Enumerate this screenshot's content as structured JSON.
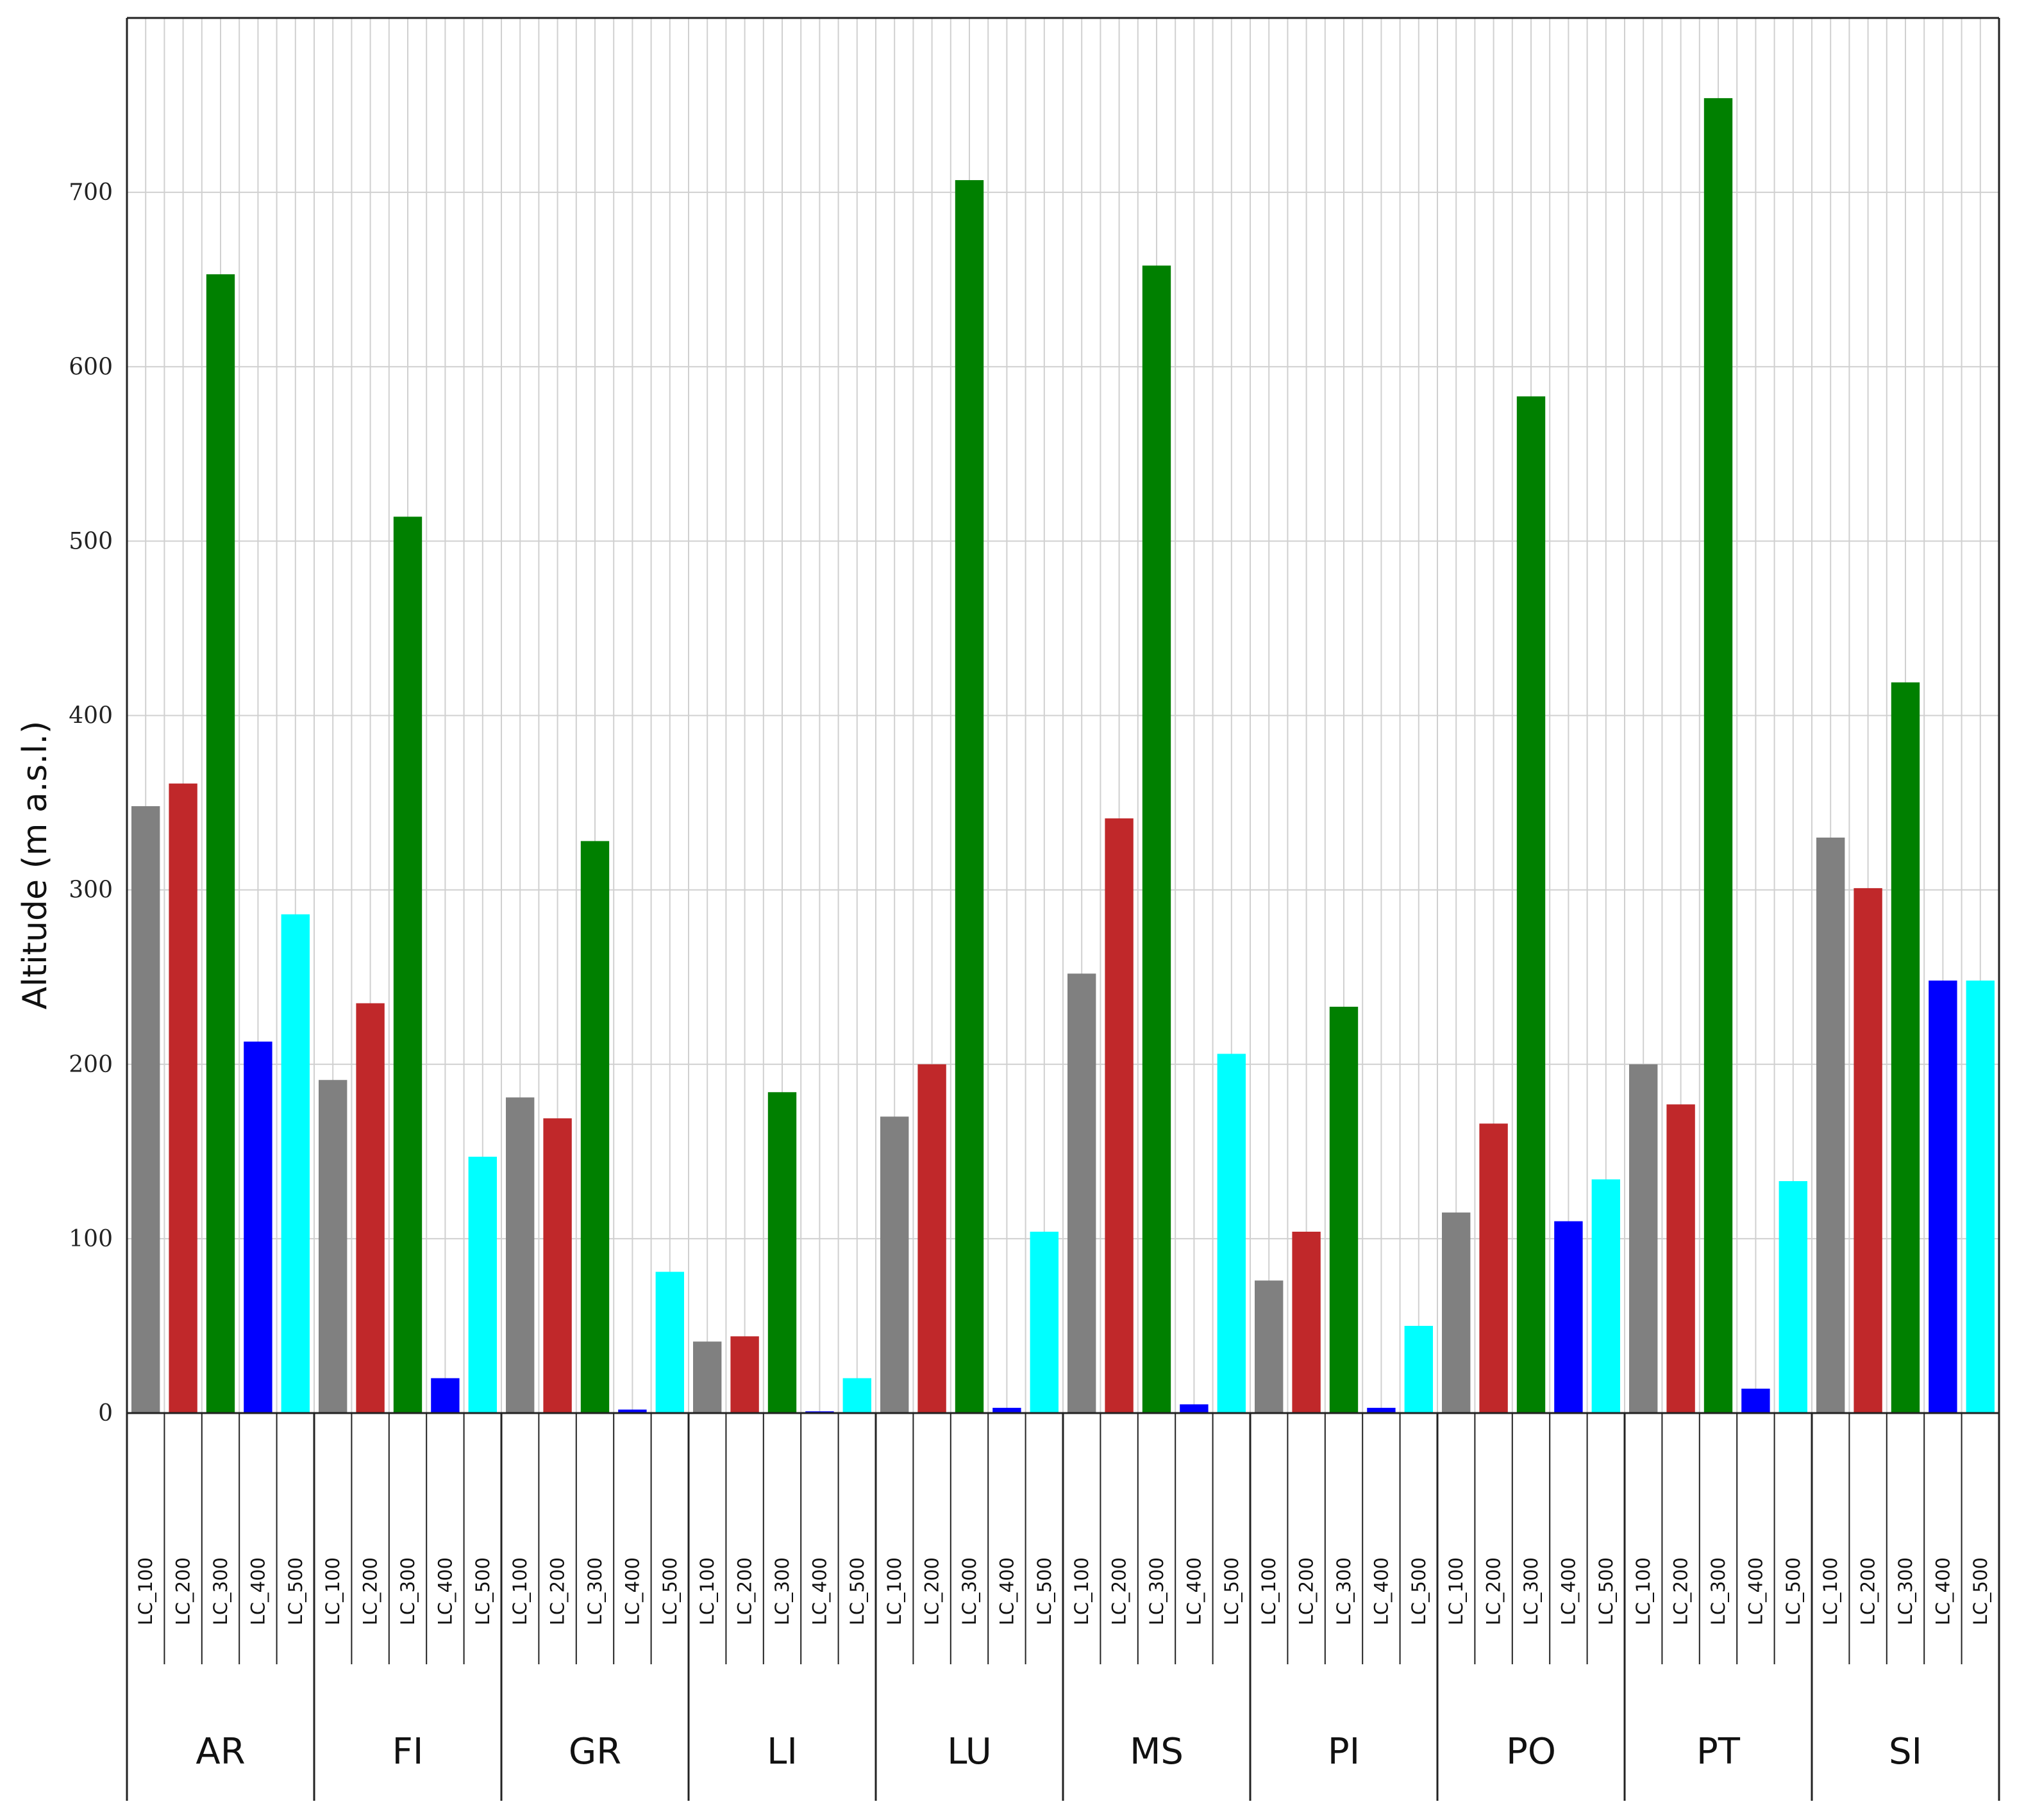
{
  "chart_data": {
    "type": "bar",
    "ylabel": "Altitude (m a.s.l.)",
    "ylim": [
      0,
      800
    ],
    "yticks": [
      0,
      100,
      200,
      300,
      400,
      500,
      600,
      700
    ],
    "grid": true,
    "legend": "none",
    "subcategories": [
      "LC_100",
      "LC_200",
      "LC_300",
      "LC_400",
      "LC_500"
    ],
    "subcategory_colors": {
      "LC_100": "#808080",
      "LC_200": "#c0282a",
      "LC_300": "#008000",
      "LC_400": "#0000ff",
      "LC_500": "#00ffff"
    },
    "groups": [
      {
        "name": "AR",
        "values": [
          348,
          361,
          653,
          213,
          286
        ]
      },
      {
        "name": "FI",
        "values": [
          191,
          235,
          514,
          20,
          147
        ]
      },
      {
        "name": "GR",
        "values": [
          181,
          169,
          328,
          2,
          81
        ]
      },
      {
        "name": "LI",
        "values": [
          41,
          44,
          184,
          1,
          20
        ]
      },
      {
        "name": "LU",
        "values": [
          170,
          200,
          707,
          3,
          104
        ]
      },
      {
        "name": "MS",
        "values": [
          252,
          341,
          658,
          5,
          206
        ]
      },
      {
        "name": "PI",
        "values": [
          76,
          104,
          233,
          3,
          50
        ]
      },
      {
        "name": "PO",
        "values": [
          115,
          166,
          583,
          110,
          134
        ]
      },
      {
        "name": "PT",
        "values": [
          200,
          177,
          754,
          14,
          133
        ]
      },
      {
        "name": "SI",
        "values": [
          330,
          301,
          419,
          248,
          248
        ]
      }
    ]
  }
}
